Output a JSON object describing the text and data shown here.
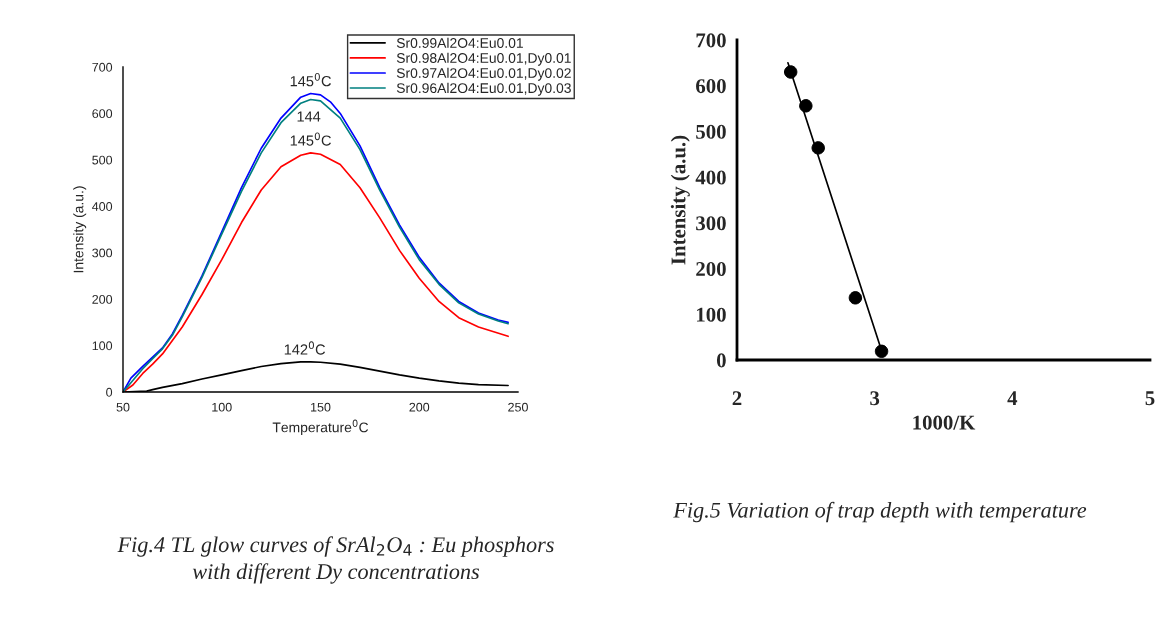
{
  "chart_data": [
    {
      "type": "line",
      "xlabel": "Temperature$^{0}$C",
      "ylabel": "Intensity (a.u.)",
      "xlim": [
        50,
        250
      ],
      "ylim": [
        0,
        700
      ],
      "xticks": [
        50,
        100,
        150,
        200,
        250
      ],
      "yticks": [
        0,
        100,
        200,
        300,
        400,
        500,
        600,
        700
      ],
      "grid": false,
      "legend": "top right",
      "marker": "none",
      "line_style": "solid",
      "series": [
        {
          "name": "Sr0.99Al2O4:Eu0.01",
          "color": "#000000",
          "x": [
            50,
            62,
            65,
            70,
            80,
            90,
            100,
            110,
            120,
            130,
            140,
            145,
            150,
            160,
            170,
            180,
            190,
            200,
            210,
            220,
            230,
            245
          ],
          "values": [
            0,
            2,
            5,
            10,
            18,
            28,
            37,
            46,
            55,
            61,
            65,
            65,
            64,
            60,
            53,
            45,
            37,
            30,
            24,
            19,
            16,
            14
          ]
        },
        {
          "name": "Sr0.98Al2O4:Eu0.01,Dy0.01",
          "color": "#ff0000",
          "x": [
            50,
            55,
            60,
            65,
            70,
            80,
            90,
            100,
            110,
            120,
            130,
            140,
            145,
            150,
            160,
            170,
            180,
            190,
            200,
            210,
            220,
            230,
            245
          ],
          "values": [
            0,
            15,
            40,
            60,
            82,
            140,
            210,
            285,
            365,
            435,
            485,
            510,
            515,
            512,
            490,
            440,
            375,
            305,
            245,
            195,
            160,
            140,
            120
          ]
        },
        {
          "name": "Sr0.97Al2O4:Eu0.01,Dy0.02",
          "color": "#0000ff",
          "x": [
            50,
            54,
            60,
            65,
            70,
            75,
            80,
            90,
            100,
            110,
            120,
            130,
            140,
            145,
            150,
            155,
            160,
            170,
            180,
            190,
            200,
            210,
            220,
            230,
            240,
            245
          ],
          "values": [
            0,
            30,
            55,
            75,
            95,
            125,
            165,
            250,
            345,
            440,
            525,
            590,
            635,
            643,
            640,
            625,
            600,
            530,
            440,
            360,
            290,
            235,
            195,
            170,
            155,
            150
          ]
        },
        {
          "name": "Sr0.96Al2O4:Eu0.01,Dy0.03",
          "color": "#008080",
          "x": [
            50,
            54,
            60,
            65,
            70,
            75,
            80,
            90,
            100,
            110,
            120,
            130,
            140,
            145,
            150,
            160,
            170,
            180,
            190,
            200,
            210,
            220,
            230,
            240,
            245
          ],
          "values": [
            0,
            20,
            50,
            72,
            93,
            122,
            162,
            247,
            340,
            432,
            515,
            580,
            622,
            630,
            627,
            590,
            522,
            435,
            355,
            285,
            232,
            192,
            168,
            153,
            147
          ]
        }
      ],
      "annotations": [
        {
          "text": "145$^{0}$C",
          "x": 145,
          "y": 643
        },
        {
          "text": "144",
          "x": 144,
          "y": 630
        },
        {
          "text": "145$^{0}$C",
          "x": 145,
          "y": 515
        },
        {
          "text": "142$^{0}$C",
          "x": 142,
          "y": 65
        },
        "Fig.4 TL glow curves of SrAl$_{2}$O$_{4}$ : Eu phosphors\nwith different Dy concentrations"
      ]
    },
    {
      "type": "scatter",
      "xlabel": "1000/K",
      "ylabel": "Intensity (a.u.)",
      "xlim": [
        2,
        5
      ],
      "ylim": [
        0,
        700
      ],
      "xticks": [
        2,
        3,
        4,
        5
      ],
      "yticks": [
        0,
        100,
        200,
        300,
        400,
        500,
        600,
        700
      ],
      "grid": false,
      "series": [
        {
          "color": "#000000",
          "marker": "circle",
          "x": [
            2.39,
            2.5,
            2.59,
            2.86,
            3.05
          ],
          "values": [
            630,
            556,
            464,
            136,
            19
          ]
        },
        {
          "type": "line",
          "color": "#000000",
          "marker": "none",
          "x": [
            2.37,
            3.04
          ],
          "values": [
            650,
            30
          ]
        }
      ],
      "annotations": [
        "Fig.5 Variation of trap depth with temperature"
      ]
    }
  ]
}
